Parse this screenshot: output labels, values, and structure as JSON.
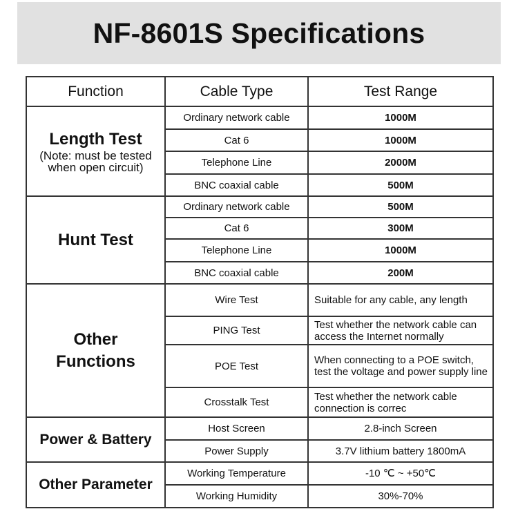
{
  "title": "NF-8601S Specifications",
  "headers": [
    "Function",
    "Cable Type",
    "Test Range"
  ],
  "groups": [
    {
      "function": "Length Test",
      "note": "(Note: must be tested when open circuit)",
      "rows": [
        [
          "Ordinary network cable",
          "1000M"
        ],
        [
          "Cat 6",
          "1000M"
        ],
        [
          "Telephone Line",
          "2000M"
        ],
        [
          "BNC coaxial cable",
          "500M"
        ]
      ]
    },
    {
      "function": "Hunt Test",
      "rows": [
        [
          "Ordinary network cable",
          "500M"
        ],
        [
          "Cat 6",
          "300M"
        ],
        [
          "Telephone Line",
          "1000M"
        ],
        [
          "BNC coaxial cable",
          "200M"
        ]
      ]
    },
    {
      "function": "Other Functions",
      "rows": [
        [
          "Wire Test",
          "Suitable for any cable, any length"
        ],
        [
          "PING Test",
          "Test whether the network cable can access the Internet normally"
        ],
        [
          "POE Test",
          "When connecting to a POE switch, test the voltage and power supply line"
        ],
        [
          "Crosstalk Test",
          "Test whether the network cable connection is correc"
        ]
      ]
    },
    {
      "function": "Power & Battery",
      "rows": [
        [
          "Host Screen",
          "2.8-inch Screen"
        ],
        [
          "Power Supply",
          "3.7V lithium battery 1800mA"
        ]
      ]
    },
    {
      "function": "Other Parameter",
      "rows": [
        [
          "Working Temperature",
          "-10 ℃ ~ +50℃"
        ],
        [
          "Working Humidity",
          "30%-70%"
        ]
      ]
    }
  ]
}
